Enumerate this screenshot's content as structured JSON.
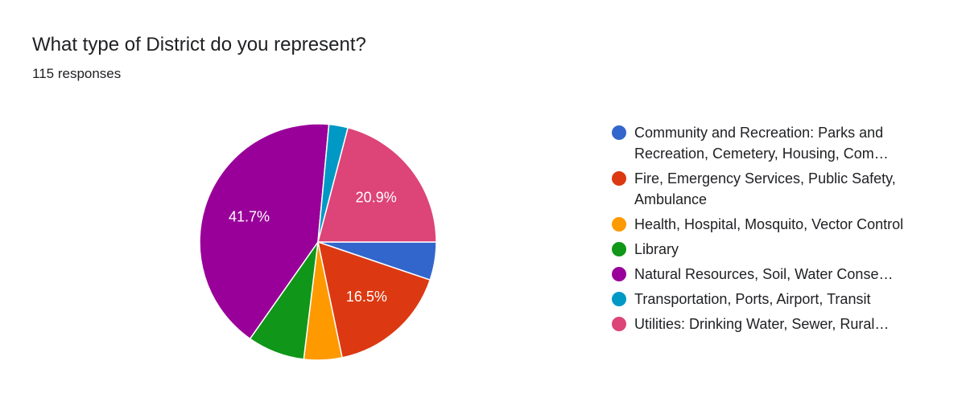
{
  "question": {
    "title": "What type of District do you represent?",
    "response_count": "115 responses"
  },
  "chart_data": {
    "type": "pie",
    "categories": [
      "Community and Recreation: Parks and Recreation, Cemetery, Housing, Community Services",
      "Fire, Emergency Services, Public Safety, Ambulance",
      "Health, Hospital, Mosquito, Vector Control",
      "Library",
      "Natural Resources, Soil, Water Conservation",
      "Transportation, Ports, Airport, Transit",
      "Utilities: Drinking Water, Sewer, Rural Utilities"
    ],
    "legend_text": [
      "Community and Recreation: Parks and Recreation, Cemetery, Housing, Com…",
      "Fire, Emergency Services, Public Safety, Ambulance",
      "Health, Hospital, Mosquito, Vector Control",
      "Library",
      "Natural Resources, Soil, Water Conse…",
      "Transportation, Ports, Airport, Transit",
      "Utilities: Drinking Water, Sewer, Rural…"
    ],
    "values": [
      5.2,
      16.5,
      5.2,
      7.8,
      41.7,
      2.6,
      20.9
    ],
    "labels": [
      "",
      "16.5%",
      "",
      "",
      "41.7%",
      "",
      "20.9%"
    ],
    "colors": [
      "#3366cc",
      "#dc3912",
      "#ff9900",
      "#109618",
      "#990099",
      "#0099c6",
      "#dd4477"
    ],
    "legend_position": "right"
  }
}
